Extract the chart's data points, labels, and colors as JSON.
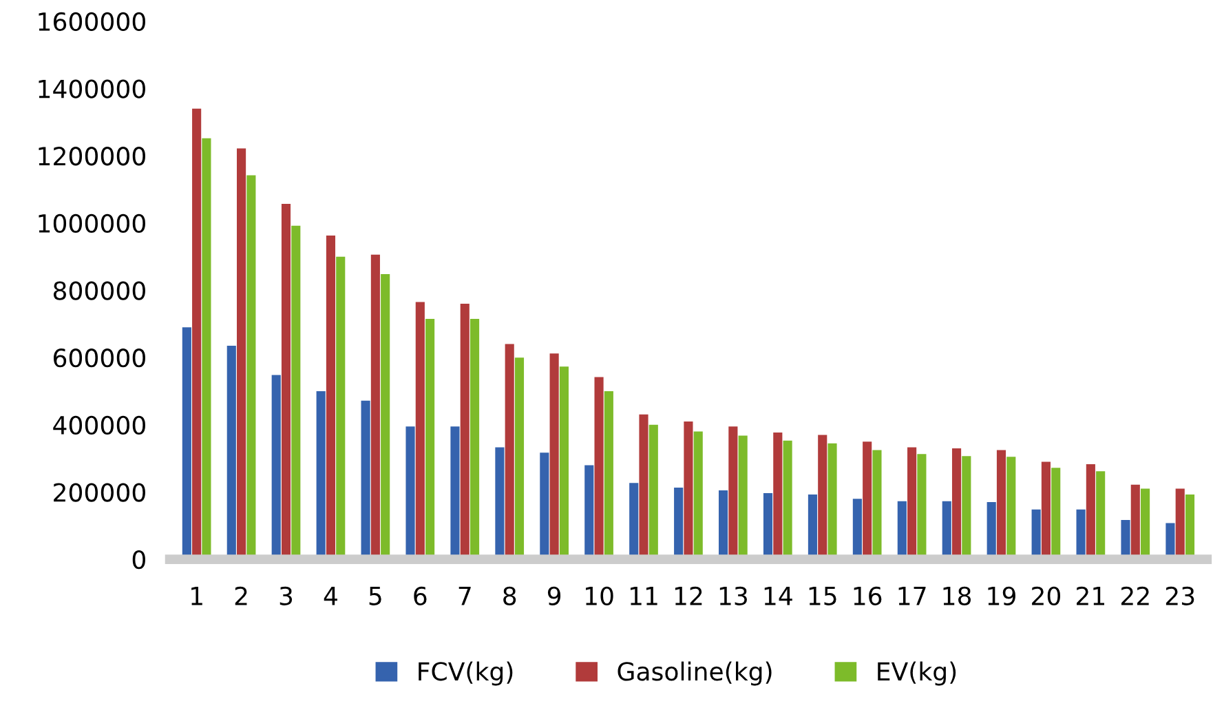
{
  "chart_data": {
    "type": "bar",
    "categories": [
      "1",
      "2",
      "3",
      "4",
      "5",
      "6",
      "7",
      "8",
      "9",
      "10",
      "11",
      "12",
      "13",
      "14",
      "15",
      "16",
      "17",
      "18",
      "19",
      "20",
      "21",
      "22",
      "23"
    ],
    "series": [
      {
        "name": "FCV(kg)",
        "color": "#3563ae",
        "values": [
          690000,
          635000,
          548000,
          500000,
          472000,
          395000,
          395000,
          333000,
          317000,
          280000,
          227000,
          213000,
          205000,
          197000,
          193000,
          180000,
          173000,
          173000,
          170000,
          148000,
          148000,
          117000,
          108000
        ]
      },
      {
        "name": "Gasoline(kg)",
        "color": "#b13b3b",
        "values": [
          1340000,
          1222000,
          1057000,
          963000,
          906000,
          765000,
          760000,
          640000,
          612000,
          542000,
          431000,
          410000,
          395000,
          377000,
          370000,
          350000,
          333000,
          330000,
          325000,
          290000,
          283000,
          222000,
          210000
        ]
      },
      {
        "name": "EV(kg)",
        "color": "#7dbb2a",
        "values": [
          1252000,
          1142000,
          992000,
          900000,
          848000,
          715000,
          715000,
          600000,
          573000,
          500000,
          400000,
          380000,
          368000,
          353000,
          345000,
          325000,
          313000,
          307000,
          305000,
          272000,
          262000,
          210000,
          193000
        ]
      }
    ],
    "ylim": [
      0,
      1600000
    ],
    "yticks": [
      0,
      200000,
      400000,
      600000,
      800000,
      1000000,
      1200000,
      1400000,
      1600000
    ],
    "grid": false,
    "legend": "bottom"
  }
}
